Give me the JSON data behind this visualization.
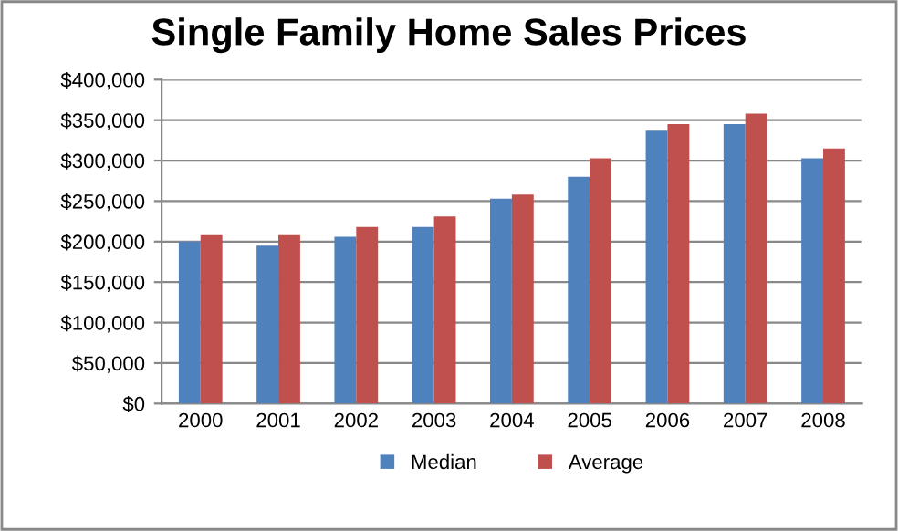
{
  "chart_data": {
    "type": "bar",
    "title": "Single Family Home Sales Prices",
    "categories": [
      "2000",
      "2001",
      "2002",
      "2003",
      "2004",
      "2005",
      "2006",
      "2007",
      "2008"
    ],
    "series": [
      {
        "name": "Median",
        "color": "#4f81bd",
        "values": [
          200000,
          195000,
          206000,
          218000,
          253000,
          280000,
          337000,
          345000,
          303000
        ]
      },
      {
        "name": "Average",
        "color": "#c0504d",
        "values": [
          208000,
          208000,
          218000,
          231000,
          258000,
          303000,
          345000,
          358000,
          315000
        ]
      }
    ],
    "ylim": [
      0,
      400000
    ],
    "yticks": [
      {
        "value": 0,
        "label": "$0"
      },
      {
        "value": 50000,
        "label": "$50,000"
      },
      {
        "value": 100000,
        "label": "$100,000"
      },
      {
        "value": 150000,
        "label": "$150,000"
      },
      {
        "value": 200000,
        "label": "$200,000"
      },
      {
        "value": 250000,
        "label": "$250,000"
      },
      {
        "value": 300000,
        "label": "$300,000"
      },
      {
        "value": 350000,
        "label": "$350,000"
      },
      {
        "value": 400000,
        "label": "$400,000"
      }
    ],
    "grid": "y",
    "legend": "bottom"
  }
}
